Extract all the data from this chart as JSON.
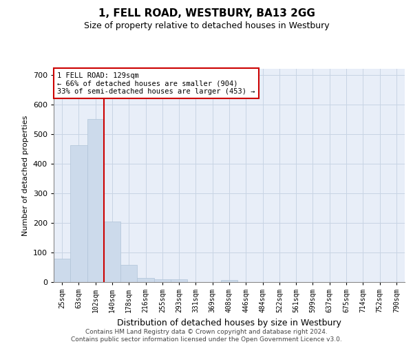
{
  "title": "1, FELL ROAD, WESTBURY, BA13 2GG",
  "subtitle": "Size of property relative to detached houses in Westbury",
  "xlabel": "Distribution of detached houses by size in Westbury",
  "ylabel": "Number of detached properties",
  "footer_line1": "Contains HM Land Registry data © Crown copyright and database right 2024.",
  "footer_line2": "Contains public sector information licensed under the Open Government Licence v3.0.",
  "bar_color": "#ccdaeb",
  "bar_edge_color": "#b0c4d8",
  "grid_color": "#c8d4e4",
  "bg_color": "#e8eef8",
  "annotation_box_edgecolor": "#cc0000",
  "vertical_line_color": "#cc0000",
  "categories": [
    "25sqm",
    "63sqm",
    "102sqm",
    "140sqm",
    "178sqm",
    "216sqm",
    "255sqm",
    "293sqm",
    "331sqm",
    "369sqm",
    "408sqm",
    "446sqm",
    "484sqm",
    "522sqm",
    "561sqm",
    "599sqm",
    "637sqm",
    "675sqm",
    "714sqm",
    "752sqm",
    "790sqm"
  ],
  "values": [
    78,
    462,
    551,
    204,
    57,
    15,
    10,
    10,
    0,
    0,
    8,
    0,
    0,
    0,
    0,
    0,
    0,
    0,
    0,
    0,
    0
  ],
  "ylim": [
    0,
    720
  ],
  "yticks": [
    0,
    100,
    200,
    300,
    400,
    500,
    600,
    700
  ],
  "annotation_text_line1": "1 FELL ROAD: 129sqm",
  "annotation_text_line2": "← 66% of detached houses are smaller (904)",
  "annotation_text_line3": "33% of semi-detached houses are larger (453) →",
  "vline_x": 2.5,
  "title_fontsize": 11,
  "subtitle_fontsize": 9,
  "ylabel_fontsize": 8,
  "xlabel_fontsize": 9,
  "ytick_fontsize": 8,
  "xtick_fontsize": 7,
  "annotation_fontsize": 7.5,
  "footer_fontsize": 6.5
}
